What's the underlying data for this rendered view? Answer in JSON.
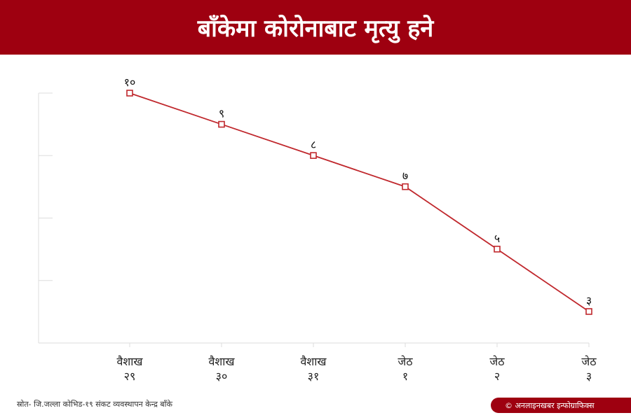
{
  "header": {
    "title": "बाँकेमा कोरोनाबाट मृत्यु हने"
  },
  "chart_data": {
    "type": "line",
    "categories": [
      "वैशाख २९",
      "वैशाख ३०",
      "वैशाख ३१",
      "जेठ १",
      "जेठ २",
      "जेठ ३"
    ],
    "category_lines": [
      [
        "वैशाख",
        "२९"
      ],
      [
        "वैशाख",
        "३०"
      ],
      [
        "वैशाख",
        "३१"
      ],
      [
        "जेठ",
        "१"
      ],
      [
        "जेठ",
        "२"
      ],
      [
        "जेठ",
        "३"
      ]
    ],
    "values": [
      10,
      9,
      8,
      7,
      5,
      3
    ],
    "data_labels": [
      "१०",
      "९",
      "८",
      "७",
      "५",
      "३"
    ],
    "ylim": [
      2,
      10
    ],
    "y_gridlines": [
      2,
      4,
      6,
      8,
      10
    ],
    "grid": false,
    "line_color": "#c0282d",
    "marker": "square"
  },
  "footer": {
    "source": "स्रोत- जि.जल्ला कोभिड-१९ संकट व्यवस्थापन केन्द्र बाँके",
    "credit": "© अनलाइनखबर इन्फोग्राफिक्स"
  },
  "colors": {
    "header_bg": "#9e0010",
    "axis": "#dddddd"
  }
}
